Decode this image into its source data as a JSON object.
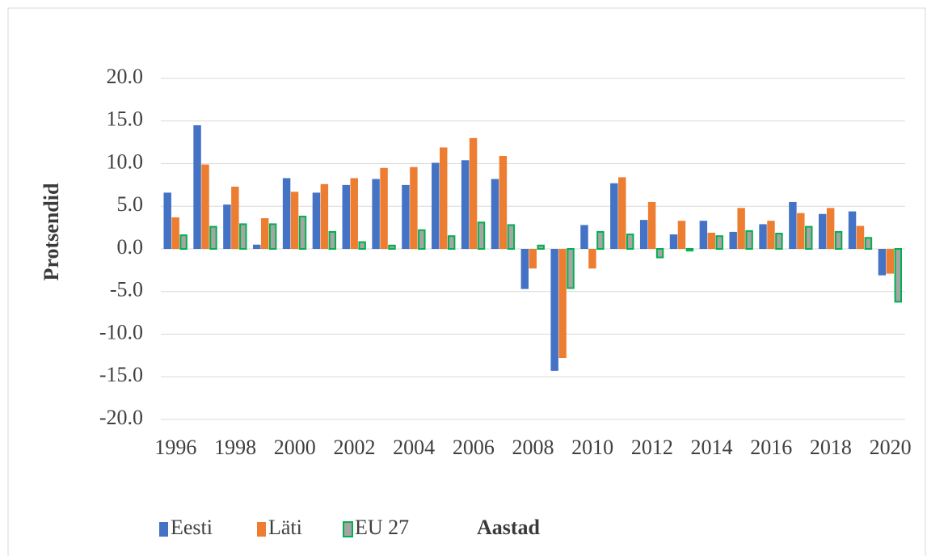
{
  "chart_data": {
    "type": "bar",
    "ylabel": "Protsendid",
    "xlabel": "Aastad",
    "categories": [
      "1996",
      null,
      "1998",
      null,
      "2000",
      null,
      "2002",
      null,
      "2004",
      null,
      "2006",
      null,
      "2008",
      null,
      "2010",
      null,
      "2012",
      null,
      "2014",
      null,
      "2016",
      null,
      "2018",
      null,
      "2020"
    ],
    "series": [
      {
        "name": "Eesti",
        "color": "#4472c4",
        "values": [
          6.6,
          14.5,
          5.2,
          0.5,
          8.3,
          6.6,
          7.5,
          8.2,
          7.5,
          10.1,
          10.4,
          8.2,
          -4.7,
          -14.3,
          2.8,
          7.7,
          3.4,
          1.7,
          3.3,
          2.0,
          2.9,
          5.5,
          4.1,
          4.4,
          -3.1
        ]
      },
      {
        "name": "Läti",
        "color": "#ed7d31",
        "values": [
          3.7,
          9.9,
          7.3,
          3.6,
          6.7,
          7.6,
          8.3,
          9.5,
          9.6,
          11.9,
          13.0,
          10.9,
          -2.3,
          -12.8,
          -2.3,
          8.4,
          5.5,
          3.3,
          1.9,
          4.8,
          3.3,
          4.2,
          4.8,
          2.7,
          -2.9
        ]
      },
      {
        "name": "EU 27",
        "color": "#a5a5a5",
        "edgecolor": "#00b050",
        "values": [
          1.6,
          2.6,
          2.9,
          2.9,
          3.8,
          2.0,
          0.8,
          0.4,
          2.2,
          1.5,
          3.1,
          2.8,
          0.4,
          -4.6,
          2.0,
          1.7,
          -1.0,
          -0.2,
          1.5,
          2.1,
          1.8,
          2.6,
          2.0,
          1.3,
          -6.2
        ]
      }
    ],
    "ylim": [
      -20,
      20
    ],
    "yticks": [
      {
        "value": -20,
        "label": "-20.0"
      },
      {
        "value": -15,
        "label": "-15.0"
      },
      {
        "value": -10,
        "label": "-10.0"
      },
      {
        "value": -5,
        "label": "-5.0"
      },
      {
        "value": 0,
        "label": "0.0"
      },
      {
        "value": 5,
        "label": "5.0"
      },
      {
        "value": 10,
        "label": "10.0"
      },
      {
        "value": 15,
        "label": "15.0"
      },
      {
        "value": 20,
        "label": "20.0"
      }
    ],
    "grid": true
  }
}
